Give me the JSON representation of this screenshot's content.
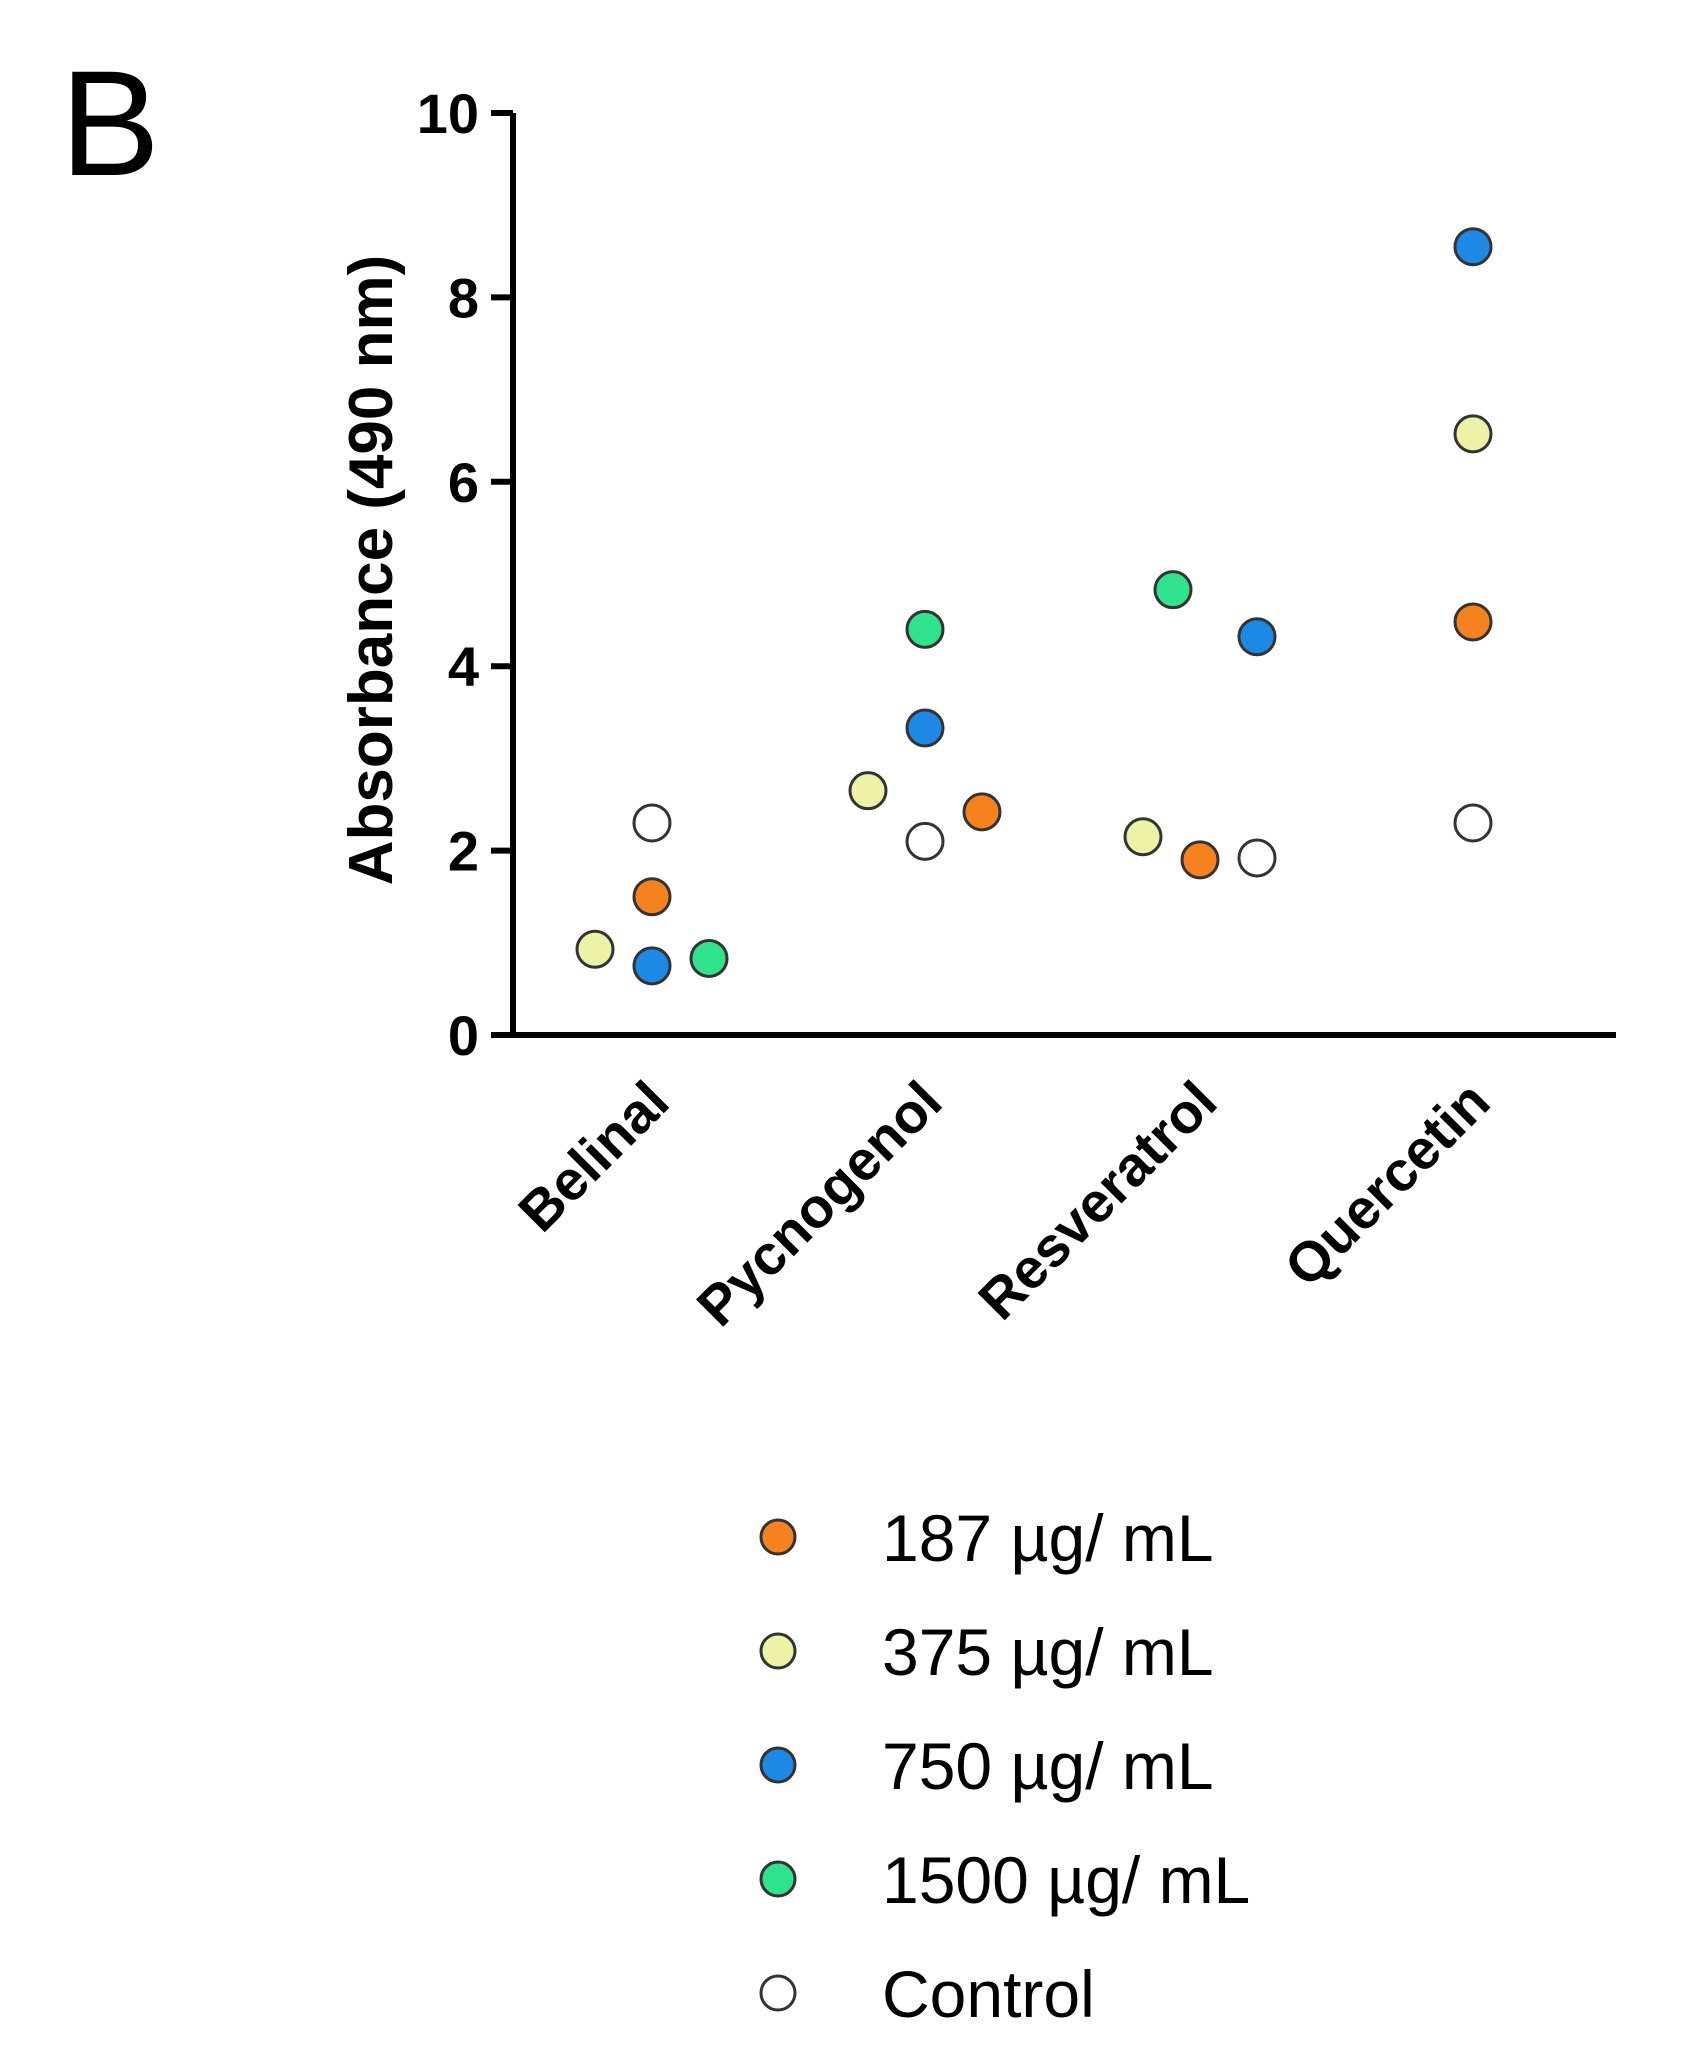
{
  "panel_label": "B",
  "chart_data": {
    "type": "scatter",
    "title": "",
    "xlabel": "",
    "ylabel": "Absorbance (490 nm)",
    "ylim": [
      0,
      10
    ],
    "yticks": [
      0,
      2,
      4,
      6,
      8,
      10
    ],
    "categories": [
      "Belinal",
      "Pycnogenol",
      "Resveratrol",
      "Quercetin"
    ],
    "series": [
      {
        "name": "187 µg/ mL",
        "color": "#F5821F",
        "values": [
          1.5,
          2.42,
          1.9,
          4.48
        ]
      },
      {
        "name": "375 µg/ mL",
        "color": "#EEF2A6",
        "values": [
          0.93,
          2.65,
          2.15,
          6.52
        ]
      },
      {
        "name": "750 µg/ mL",
        "color": "#1E88E5",
        "values": [
          0.75,
          3.33,
          4.32,
          8.55
        ]
      },
      {
        "name": "1500 µg/ mL",
        "color": "#2FE28B",
        "values": [
          0.83,
          4.4,
          4.83,
          null
        ]
      },
      {
        "name": "Control",
        "color": "#FFFFFF",
        "values": [
          2.3,
          2.1,
          1.92,
          2.3
        ]
      }
    ],
    "legend_position": "bottom"
  }
}
